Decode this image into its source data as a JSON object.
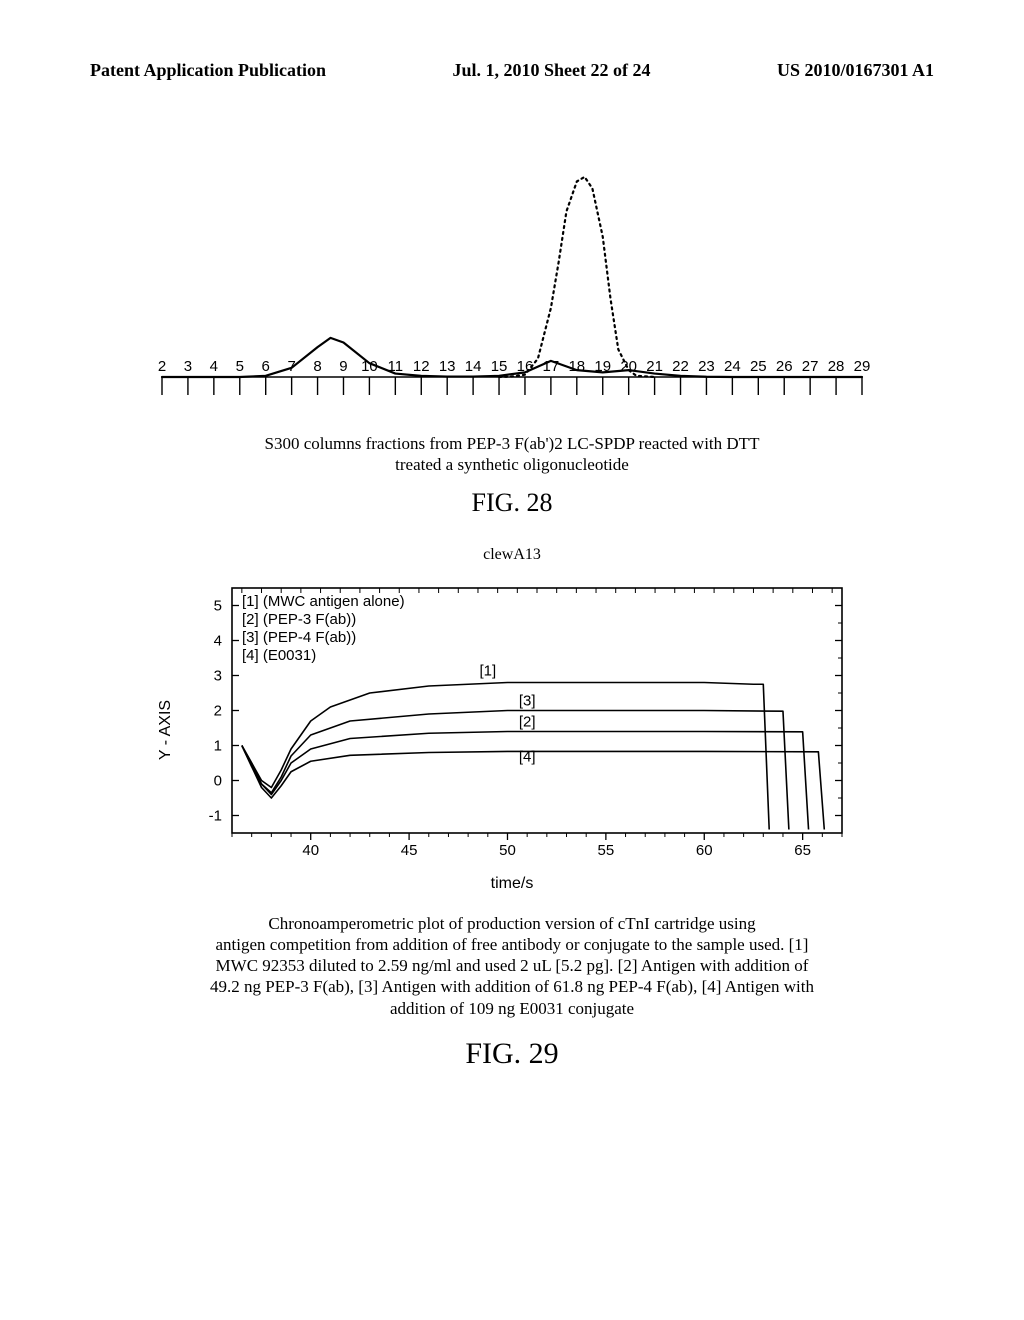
{
  "header": {
    "left": "Patent Application Publication",
    "center": "Jul. 1, 2010   Sheet 22 of 24",
    "right": "US 2010/0167301 A1"
  },
  "fig28": {
    "label": "FIG. 28",
    "caption_line1": "S300 columns fractions from PEP-3 F(ab')2 LC-SPDP reacted with DTT",
    "caption_line2": "treated a synthetic oligonucleotide",
    "x_ticks": [
      2,
      3,
      4,
      5,
      6,
      7,
      8,
      9,
      10,
      11,
      12,
      13,
      14,
      15,
      16,
      17,
      18,
      19,
      20,
      21,
      22,
      23,
      24,
      25,
      26,
      27,
      28,
      29
    ],
    "curves": {
      "solid": {
        "color": "#000000",
        "line_width": 2.2,
        "points": [
          [
            2,
            0
          ],
          [
            3,
            0
          ],
          [
            4,
            0
          ],
          [
            5,
            0
          ],
          [
            6,
            0.5
          ],
          [
            7,
            4
          ],
          [
            8,
            13
          ],
          [
            8.5,
            17
          ],
          [
            9,
            15
          ],
          [
            10,
            6
          ],
          [
            11,
            1.5
          ],
          [
            12,
            0.5
          ],
          [
            13,
            0.2
          ],
          [
            14,
            0.2
          ],
          [
            15,
            0.5
          ],
          [
            16,
            2
          ],
          [
            17,
            7
          ],
          [
            18,
            3
          ],
          [
            19,
            2
          ],
          [
            20,
            3
          ],
          [
            21,
            1.5
          ],
          [
            22,
            0.5
          ],
          [
            23,
            0.1
          ],
          [
            24,
            0
          ],
          [
            25,
            0
          ],
          [
            26,
            0
          ],
          [
            27,
            0
          ],
          [
            28,
            0
          ],
          [
            29,
            0
          ]
        ]
      },
      "dotted": {
        "color": "#000000",
        "line_width": 2.2,
        "dash": "2,4",
        "points": [
          [
            15,
            0
          ],
          [
            15.5,
            0.2
          ],
          [
            16,
            1
          ],
          [
            16.5,
            8
          ],
          [
            17,
            30
          ],
          [
            17.3,
            50
          ],
          [
            17.6,
            72
          ],
          [
            18,
            85
          ],
          [
            18.3,
            87
          ],
          [
            18.6,
            82
          ],
          [
            19,
            61
          ],
          [
            19.3,
            34
          ],
          [
            19.6,
            12
          ],
          [
            20,
            3
          ],
          [
            20.3,
            0.5
          ],
          [
            21,
            0
          ]
        ]
      }
    },
    "y_max": 100,
    "background": "#ffffff"
  },
  "fig29": {
    "label": "FIG. 29",
    "title": "clewA13",
    "y_label": "Y - AXIS",
    "x_label": "time/s",
    "caption_line1": "Chronoamperometric plot of production version of cTnI cartridge using",
    "caption_line2": "antigen competition from addition of free antibody or conjugate to the sample used. [1]",
    "caption_line3": "MWC 92353 diluted to 2.59 ng/ml and used 2 uL [5.2 pg]. [2] Antigen with addition of",
    "caption_line4": "49.2 ng PEP-3 F(ab), [3] Antigen with addition of 61.8 ng PEP-4 F(ab), [4] Antigen with",
    "caption_line5": "addition of 109 ng E0031 conjugate",
    "legend": [
      "[1] (MWC antigen alone)",
      "[2] (PEP-3 F(ab))",
      "[3] (PEP-4 F(ab))",
      "[4] (E0031)"
    ],
    "series_labels": [
      "[1]",
      "[2]",
      "[3]",
      "[4]"
    ],
    "x_ticks": [
      40,
      45,
      50,
      55,
      60,
      65
    ],
    "y_ticks": [
      -1,
      0,
      1,
      2,
      3,
      4,
      5
    ],
    "xlim": [
      36,
      67
    ],
    "ylim": [
      -1.5,
      5.5
    ],
    "series": {
      "s1": {
        "color": "#000000",
        "width": 1.6,
        "points": [
          [
            36.5,
            1.0
          ],
          [
            37,
            0.5
          ],
          [
            37.5,
            0.0
          ],
          [
            38,
            -0.2
          ],
          [
            38.5,
            0.3
          ],
          [
            39,
            0.9
          ],
          [
            40,
            1.7
          ],
          [
            41,
            2.1
          ],
          [
            43,
            2.5
          ],
          [
            46,
            2.7
          ],
          [
            50,
            2.8
          ],
          [
            55,
            2.8
          ],
          [
            60,
            2.8
          ],
          [
            62.5,
            2.75
          ],
          [
            63,
            2.75
          ],
          [
            63.3,
            -1.4
          ]
        ]
      },
      "s3": {
        "color": "#000000",
        "width": 1.6,
        "points": [
          [
            36.5,
            1.0
          ],
          [
            37,
            0.5
          ],
          [
            37.5,
            -0.1
          ],
          [
            38,
            -0.35
          ],
          [
            38.5,
            0.1
          ],
          [
            39,
            0.7
          ],
          [
            40,
            1.3
          ],
          [
            42,
            1.7
          ],
          [
            46,
            1.9
          ],
          [
            50,
            2.0
          ],
          [
            55,
            2.0
          ],
          [
            60,
            2.0
          ],
          [
            64,
            1.98
          ],
          [
            64.3,
            -1.4
          ]
        ]
      },
      "s2": {
        "color": "#000000",
        "width": 1.6,
        "points": [
          [
            36.5,
            1.0
          ],
          [
            37,
            0.4
          ],
          [
            37.5,
            -0.1
          ],
          [
            38,
            -0.4
          ],
          [
            38.5,
            0.0
          ],
          [
            39,
            0.5
          ],
          [
            40,
            0.9
          ],
          [
            42,
            1.2
          ],
          [
            46,
            1.35
          ],
          [
            50,
            1.4
          ],
          [
            55,
            1.4
          ],
          [
            60,
            1.4
          ],
          [
            65,
            1.39
          ],
          [
            65.3,
            -1.4
          ]
        ]
      },
      "s4": {
        "color": "#000000",
        "width": 1.6,
        "points": [
          [
            36.5,
            1.0
          ],
          [
            37,
            0.4
          ],
          [
            37.5,
            -0.2
          ],
          [
            38,
            -0.5
          ],
          [
            38.5,
            -0.15
          ],
          [
            39,
            0.25
          ],
          [
            40,
            0.55
          ],
          [
            42,
            0.72
          ],
          [
            46,
            0.8
          ],
          [
            50,
            0.83
          ],
          [
            55,
            0.83
          ],
          [
            60,
            0.83
          ],
          [
            65.8,
            0.82
          ],
          [
            66.1,
            -1.4
          ]
        ]
      }
    },
    "series_label_positions": {
      "[1]": [
        49,
        3.0
      ],
      "[3]": [
        51,
        2.15
      ],
      "[2]": [
        51,
        1.55
      ],
      "[4]": [
        51,
        0.55
      ]
    },
    "background": "#ffffff",
    "border_color": "#000000"
  }
}
